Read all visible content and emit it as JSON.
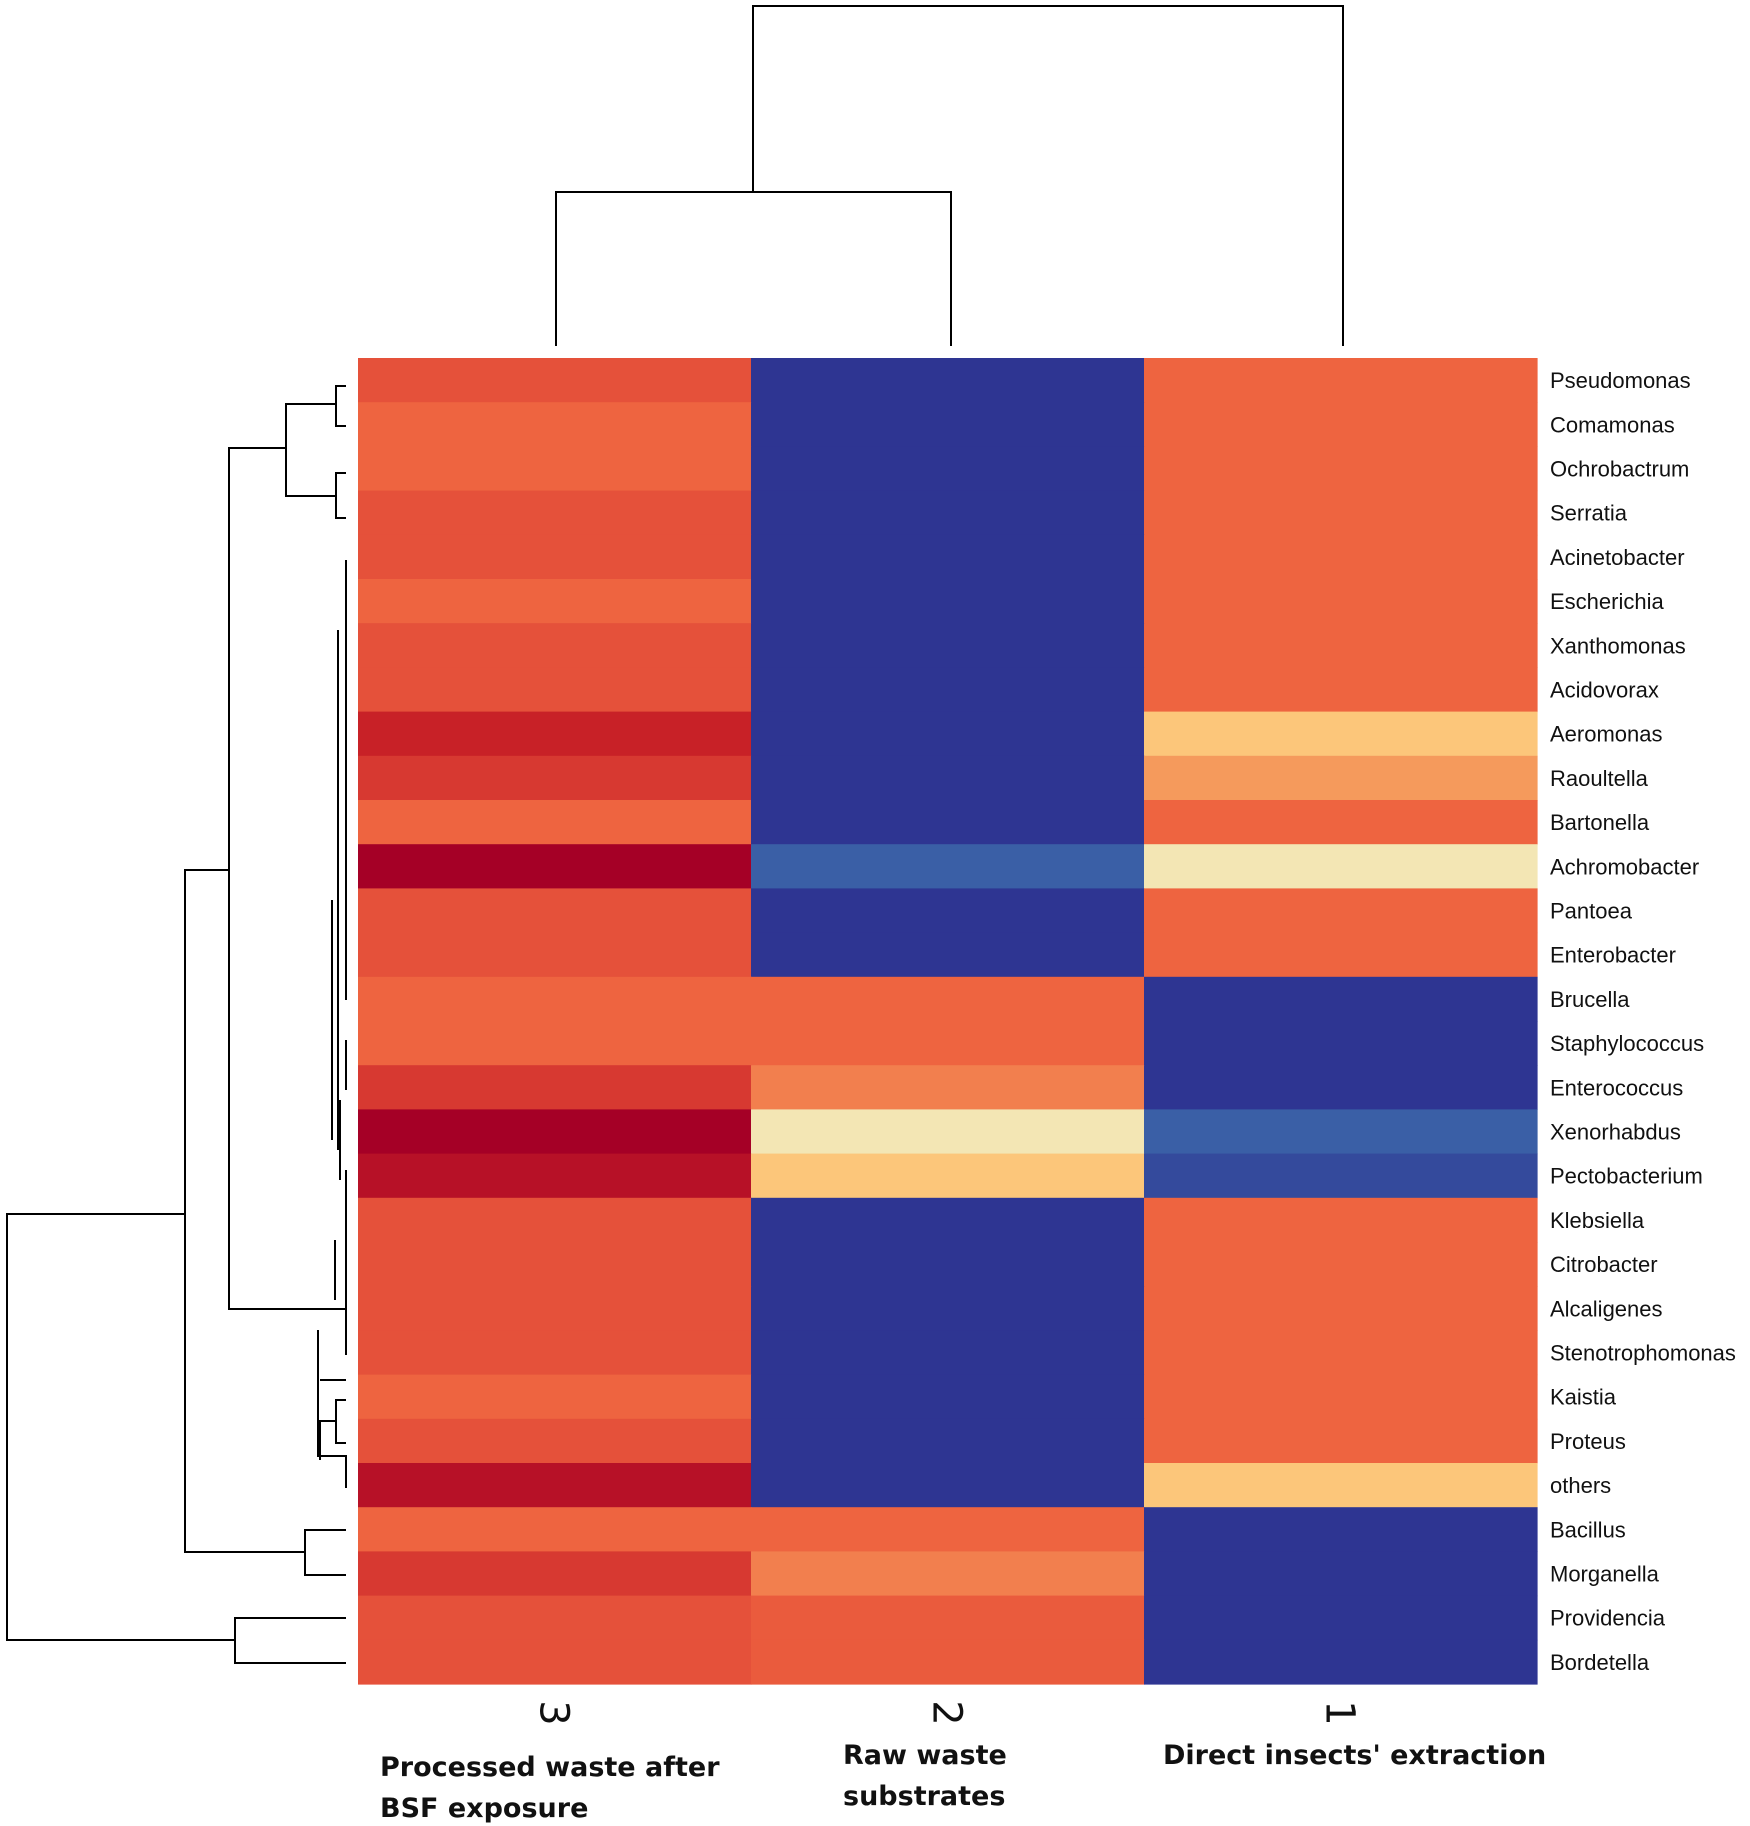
{
  "chart_data": {
    "type": "heatmap",
    "title": "",
    "color_scale": [
      "#2e3592",
      "#3a5fa6",
      "#f3e6b4",
      "#fcc67a",
      "#f59a5c",
      "#ee6440",
      "#e5513a",
      "#c82127",
      "#a50026"
    ],
    "columns": [
      {
        "number": "3",
        "caption": [
          "Processed waste after",
          "BSF exposure"
        ]
      },
      {
        "number": "2",
        "caption": [
          "Raw waste",
          "substrates"
        ]
      },
      {
        "number": "1",
        "caption": [
          "Direct insects' extraction"
        ]
      }
    ],
    "rows": [
      "Pseudomonas",
      "Comamonas",
      "Ochrobactrum",
      "Serratia",
      "Acinetobacter",
      "Escherichia",
      "Xanthomonas",
      "Acidovorax",
      "Aeromonas",
      "Raoultella",
      "Bartonella",
      "Achromobacter",
      "Pantoea",
      "Enterobacter",
      "Brucella",
      "Staphylococcus",
      "Enterococcus",
      "Xenorhabdus",
      "Pectobacterium",
      "Klebsiella",
      "Citrobacter",
      "Alcaligenes",
      "Stenotrophomonas",
      "Kaistia",
      "Proteus",
      "others",
      "Bacillus",
      "Morganella",
      "Providencia",
      "Bordetella"
    ],
    "values": [
      [
        6,
        0,
        5
      ],
      [
        5,
        0,
        5
      ],
      [
        5,
        0,
        5
      ],
      [
        6,
        0,
        5
      ],
      [
        6,
        0,
        5
      ],
      [
        5,
        0,
        5
      ],
      [
        6,
        0,
        5
      ],
      [
        6,
        0,
        5
      ],
      [
        7,
        0,
        3
      ],
      [
        6.5,
        0,
        4
      ],
      [
        5,
        0,
        5
      ],
      [
        8,
        1,
        2
      ],
      [
        6,
        0,
        5
      ],
      [
        6,
        0,
        5
      ],
      [
        5,
        5,
        0
      ],
      [
        5,
        5,
        0
      ],
      [
        6.5,
        4.5,
        0
      ],
      [
        8,
        2,
        1
      ],
      [
        7.5,
        3,
        0.5
      ],
      [
        6,
        0,
        5
      ],
      [
        6,
        0,
        5
      ],
      [
        6,
        0,
        5
      ],
      [
        6,
        0,
        5
      ],
      [
        5,
        0,
        5
      ],
      [
        6,
        0,
        5
      ],
      [
        7.5,
        0,
        3
      ],
      [
        5,
        5,
        0
      ],
      [
        6.5,
        4.5,
        0
      ],
      [
        6,
        5.5,
        0
      ],
      [
        6,
        5.5,
        0
      ]
    ]
  }
}
